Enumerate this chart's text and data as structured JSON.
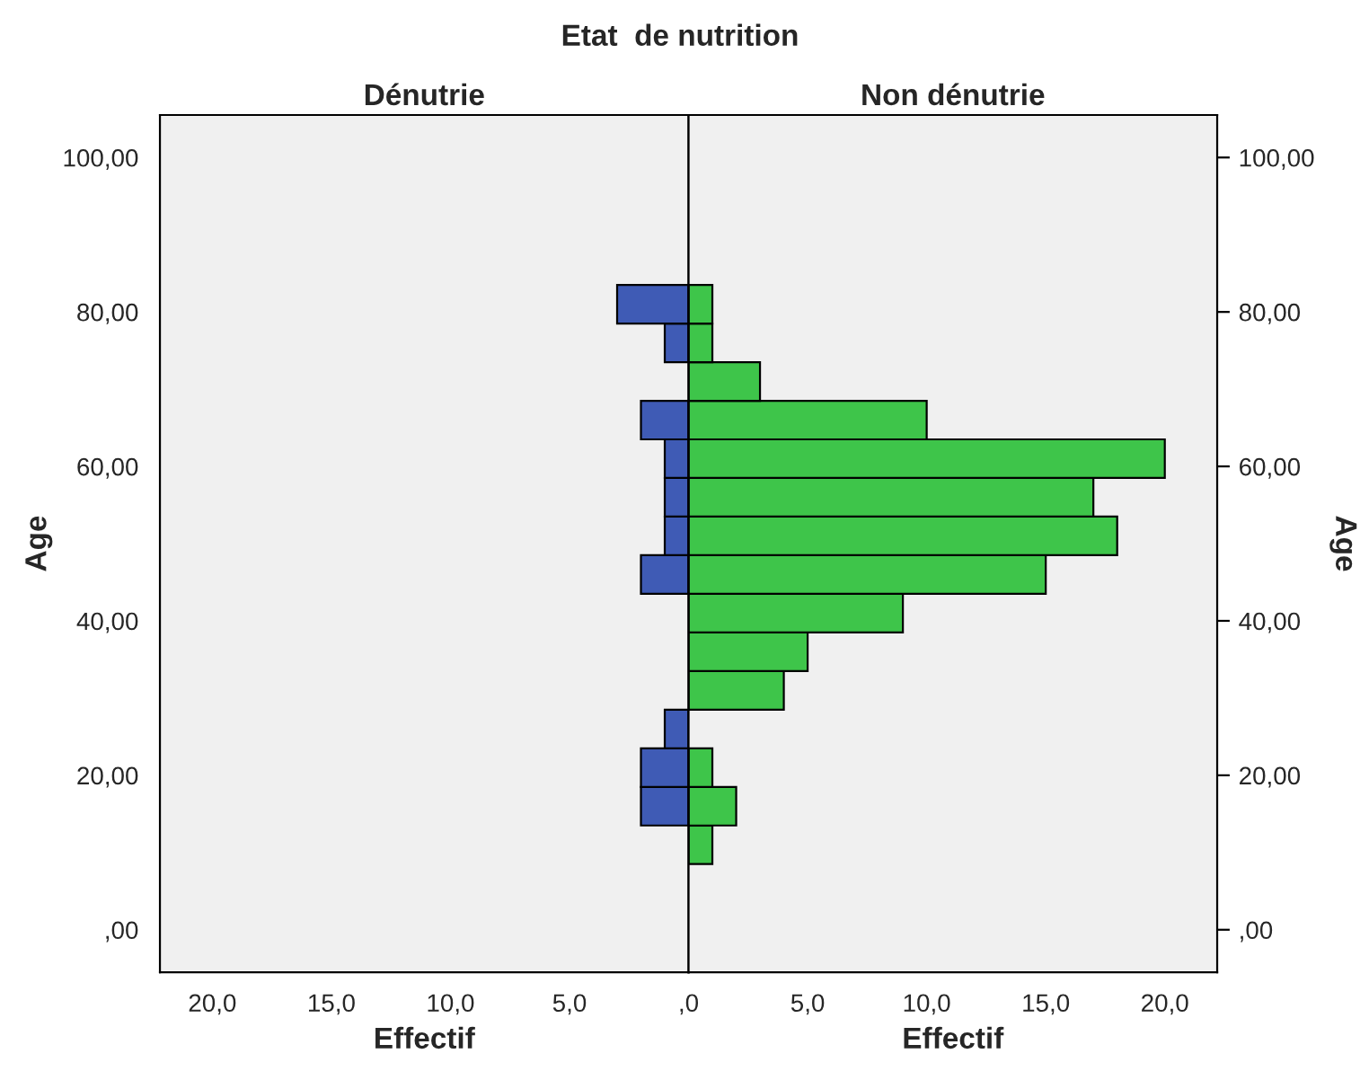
{
  "chart_data": [
    {
      "type": "histogram",
      "orientation": "horizontal",
      "title": "Etat  de nutrition",
      "subtitle": "Dénutrie",
      "xlabel": "Effectif",
      "ylabel": "Age",
      "bins": [
        8.5,
        13.5,
        18.5,
        23.5,
        28.5,
        33.5,
        38.5,
        43.5,
        48.5,
        53.5,
        58.5,
        63.5,
        68.5,
        73.5,
        78.5,
        83.5
      ],
      "values": [
        null,
        2,
        2,
        1,
        null,
        null,
        null,
        2,
        1,
        1,
        1,
        2,
        null,
        1,
        3
      ],
      "color": "#3f5bb5",
      "xlim": [
        22.2,
        0
      ],
      "xticks": [
        {
          "value": 20,
          "label": "20,0"
        },
        {
          "value": 15,
          "label": "15,0"
        },
        {
          "value": 10,
          "label": "10,0"
        },
        {
          "value": 5,
          "label": "5,0"
        },
        {
          "value": 0,
          "label": null
        }
      ],
      "ylim": [
        -5.5,
        105.5
      ],
      "yticks": [
        {
          "value": 0,
          "label": ",00"
        },
        {
          "value": 20,
          "label": "20,00"
        },
        {
          "value": 40,
          "label": "40,00"
        },
        {
          "value": 60,
          "label": "60,00"
        },
        {
          "value": 80,
          "label": "80,00"
        },
        {
          "value": 100,
          "label": "100,00"
        }
      ]
    },
    {
      "type": "histogram",
      "orientation": "horizontal",
      "subtitle": "Non dénutrie",
      "xlabel": "Effectif",
      "ylabel": "Age",
      "bins": [
        8.5,
        13.5,
        18.5,
        23.5,
        28.5,
        33.5,
        38.5,
        43.5,
        48.5,
        53.5,
        58.5,
        63.5,
        68.5,
        73.5,
        78.5,
        83.5
      ],
      "values": [
        1,
        2,
        1,
        null,
        4,
        5,
        9,
        15,
        18,
        17,
        20,
        10,
        3,
        1,
        1
      ],
      "color": "#3ec54a",
      "xlim": [
        0,
        22.2
      ],
      "xticks": [
        {
          "value": 0,
          "label": ",0"
        },
        {
          "value": 5,
          "label": "5,0"
        },
        {
          "value": 10,
          "label": "10,0"
        },
        {
          "value": 15,
          "label": "15,0"
        },
        {
          "value": 20,
          "label": "20,0"
        }
      ],
      "ylim": [
        -5.5,
        105.5
      ],
      "yticks": [
        {
          "value": 0,
          "label": ",00"
        },
        {
          "value": 20,
          "label": "20,00"
        },
        {
          "value": 40,
          "label": "40,00"
        },
        {
          "value": 60,
          "label": "60,00"
        },
        {
          "value": 80,
          "label": "80,00"
        },
        {
          "value": 100,
          "label": "100,00"
        }
      ]
    }
  ]
}
